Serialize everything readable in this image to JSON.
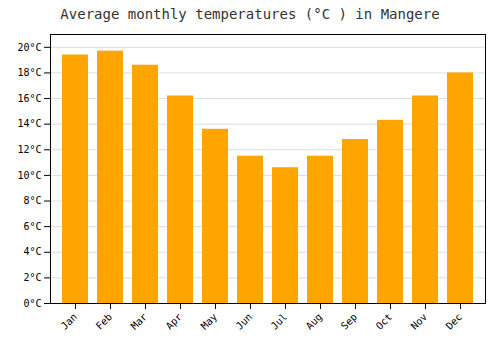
{
  "chart_data": {
    "type": "bar",
    "title": "Average monthly temperatures (°C ) in Mangere",
    "categories": [
      "Jan",
      "Feb",
      "Mar",
      "Apr",
      "May",
      "Jun",
      "Jul",
      "Aug",
      "Sep",
      "Oct",
      "Nov",
      "Dec"
    ],
    "values": [
      19.4,
      19.7,
      18.6,
      16.2,
      13.6,
      11.5,
      10.6,
      11.5,
      12.8,
      14.3,
      16.2,
      18.0
    ],
    "color": "#FFA500",
    "ylim": [
      0,
      21
    ],
    "yticks": [
      {
        "value": 0,
        "label": "0°C"
      },
      {
        "value": 2,
        "label": "2°C"
      },
      {
        "value": 4,
        "label": "4°C"
      },
      {
        "value": 6,
        "label": "6°C"
      },
      {
        "value": 8,
        "label": "8°C"
      },
      {
        "value": 10,
        "label": "10°C"
      },
      {
        "value": 12,
        "label": "12°C"
      },
      {
        "value": 14,
        "label": "14°C"
      },
      {
        "value": 16,
        "label": "16°C"
      },
      {
        "value": 18,
        "label": "18°C"
      },
      {
        "value": 20,
        "label": "20°C"
      }
    ],
    "grid": true
  }
}
